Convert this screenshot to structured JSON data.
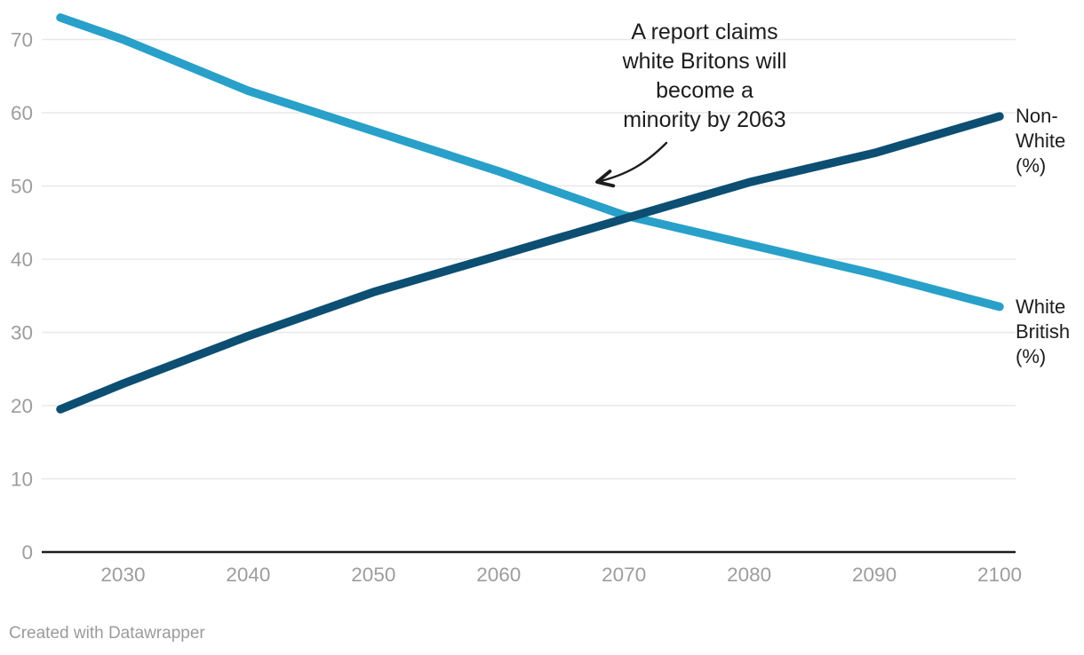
{
  "chart_data": {
    "type": "line",
    "x": [
      2025,
      2030,
      2040,
      2050,
      2060,
      2070,
      2080,
      2090,
      2100
    ],
    "series": [
      {
        "name": "White British (%)",
        "label": "White\nBritish\n(%)",
        "color": "#29a0c9",
        "values": [
          73,
          70,
          63,
          57.5,
          52,
          46,
          42,
          38,
          33.5
        ]
      },
      {
        "name": "Non-White (%)",
        "label": "Non-\nWhite\n(%)",
        "color": "#0d4e73",
        "values": [
          19.5,
          23,
          29.5,
          35.5,
          40.5,
          45.5,
          50.5,
          54.5,
          59.5
        ]
      }
    ],
    "xlim": [
      2025,
      2100
    ],
    "ylim": [
      0,
      75
    ],
    "x_ticks": [
      2030,
      2040,
      2050,
      2060,
      2070,
      2080,
      2090,
      2100
    ],
    "y_ticks": [
      0,
      10,
      20,
      30,
      40,
      50,
      60,
      70
    ],
    "grid": "horizontal",
    "legend_position": "right-end-labels",
    "annotation": {
      "text": "A report claims\nwhite Britons will\nbecome a\nminority by 2063",
      "arrow": true
    },
    "colors": {
      "tick_label": "#9d9d9d",
      "grid_line": "#e8e8e8",
      "axis_line": "#1d1d1d",
      "annotation_text": "#1d1d1d"
    }
  },
  "footer": {
    "credit": "Created with Datawrapper"
  }
}
